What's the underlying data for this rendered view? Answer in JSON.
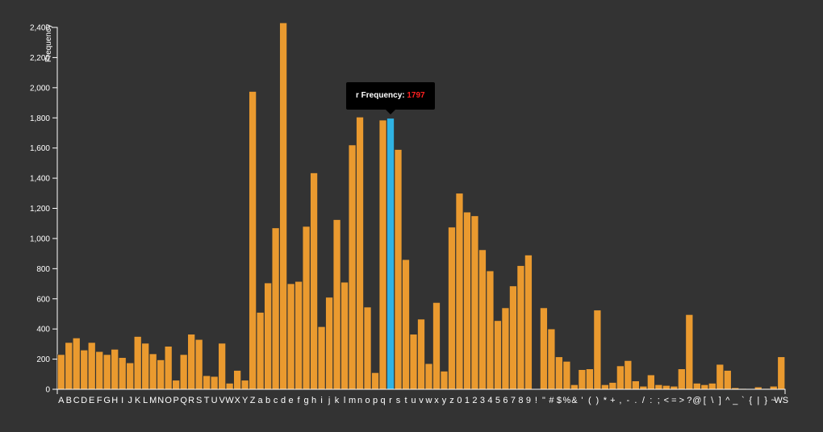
{
  "chart_data": {
    "type": "bar",
    "ylabel": "Frequency",
    "ylim": [
      0,
      2400
    ],
    "yticks": [
      0,
      200,
      400,
      600,
      800,
      1000,
      1200,
      1400,
      1600,
      1800,
      2000,
      2200,
      2400
    ],
    "ytick_labels": [
      "0",
      "200",
      "400",
      "600",
      "800",
      "1,000",
      "1,200",
      "1,400",
      "1,600",
      "1,800",
      "2,000",
      "2,200",
      "2,400"
    ],
    "grid": false,
    "categories": [
      "A",
      "B",
      "C",
      "D",
      "E",
      "F",
      "G",
      "H",
      "I",
      "J",
      "K",
      "L",
      "M",
      "N",
      "O",
      "P",
      "Q",
      "R",
      "S",
      "T",
      "U",
      "V",
      "W",
      "X",
      "Y",
      "Z",
      "a",
      "b",
      "c",
      "d",
      "e",
      "f",
      "g",
      "h",
      "i",
      "j",
      "k",
      "l",
      "m",
      "n",
      "o",
      "p",
      "q",
      "r",
      "s",
      "t",
      "u",
      "v",
      "w",
      "x",
      "y",
      "z",
      "0",
      "1",
      "2",
      "3",
      "4",
      "5",
      "6",
      "7",
      "8",
      "9",
      "!",
      "\"",
      "#",
      "$",
      "%",
      "&",
      "'",
      "(",
      ")",
      "*",
      "+",
      ",",
      "-",
      ".",
      "/",
      ":",
      ";",
      "<",
      "=",
      ">",
      "?",
      "@",
      "[",
      "\\",
      "]",
      "^",
      "_",
      "`",
      "{",
      "|",
      "}",
      "~",
      "WS"
    ],
    "values": [
      230,
      310,
      340,
      260,
      310,
      250,
      230,
      265,
      210,
      175,
      350,
      305,
      235,
      195,
      285,
      60,
      230,
      365,
      330,
      90,
      85,
      305,
      40,
      125,
      60,
      1975,
      510,
      705,
      1070,
      2430,
      700,
      715,
      1080,
      1435,
      415,
      610,
      1125,
      710,
      1620,
      1805,
      545,
      110,
      1785,
      1797,
      1590,
      860,
      365,
      465,
      170,
      575,
      120,
      1075,
      1300,
      1175,
      1150,
      925,
      785,
      455,
      540,
      685,
      820,
      890,
      0,
      540,
      400,
      215,
      185,
      30,
      130,
      135,
      525,
      30,
      45,
      155,
      190,
      55,
      20,
      95,
      30,
      25,
      20,
      135,
      495,
      40,
      30,
      40,
      165,
      125,
      10,
      5,
      0,
      15,
      5,
      20,
      215
    ],
    "highlight": {
      "category": "r",
      "value": 1797,
      "label": "r Frequency:",
      "value_text": "1797"
    },
    "colors": {
      "bar": "#ea9a2f",
      "highlight": "#2fb3e4",
      "background": "#333333",
      "axis": "#ffffff",
      "tooltip_bg": "#000000",
      "tooltip_value": "#ff2020"
    }
  }
}
